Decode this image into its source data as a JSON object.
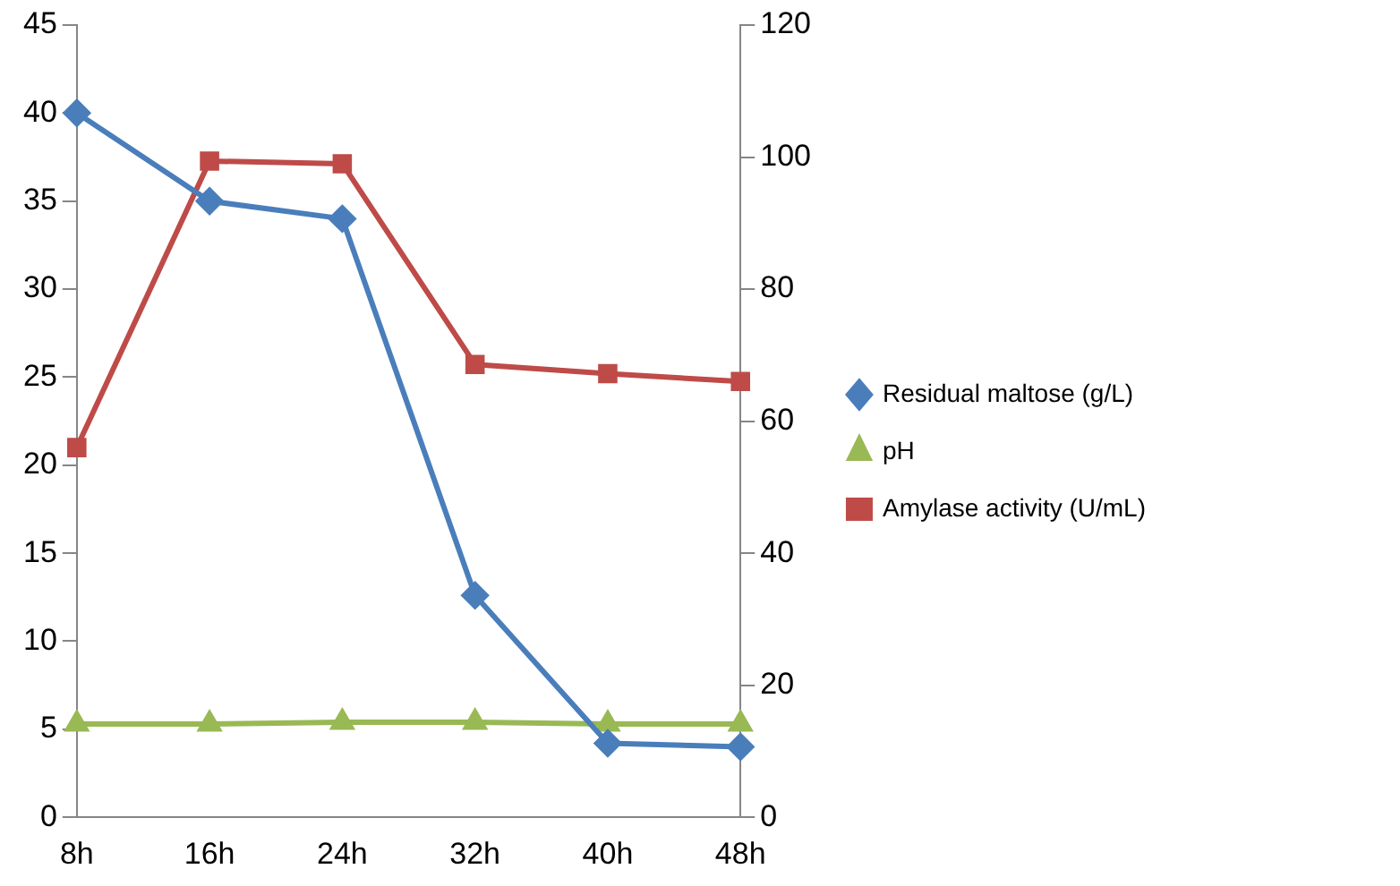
{
  "chart_data": {
    "type": "line",
    "categories": [
      "8h",
      "16h",
      "24h",
      "32h",
      "40h",
      "48h"
    ],
    "series": [
      {
        "name": "Residual maltose (g/L)",
        "color": "#4a7ebb",
        "marker": "diamond",
        "values": [
          40,
          35,
          34,
          12.6,
          4.2,
          4
        ]
      },
      {
        "name": "pH",
        "color": "#98b954",
        "marker": "triangle",
        "values": [
          5.3,
          5.3,
          5.4,
          5.4,
          5.3,
          5.3
        ]
      },
      {
        "name": "Amylase activity (U/mL)",
        "color": "#be4b48",
        "marker": "square",
        "axis": "y2",
        "values": [
          56,
          99.4,
          99,
          68.6,
          67.2,
          66
        ]
      }
    ],
    "ylim": [
      0,
      45
    ],
    "yticks": [
      0,
      5,
      10,
      15,
      20,
      25,
      30,
      35,
      40,
      45
    ],
    "y2lim": [
      0,
      120
    ],
    "y2ticks": [
      0,
      20,
      40,
      60,
      80,
      100,
      120
    ],
    "grid": false,
    "legend": "right",
    "line_style": "solid"
  }
}
